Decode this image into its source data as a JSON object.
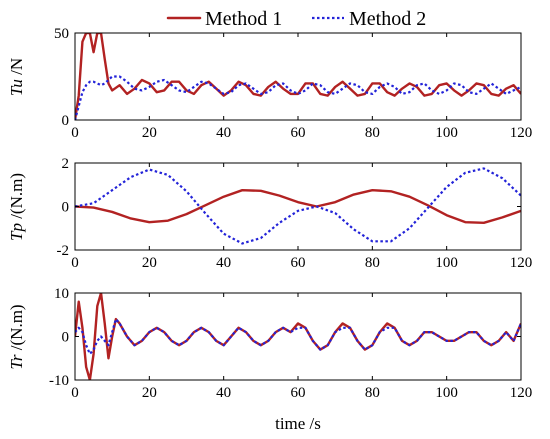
{
  "legend": {
    "items": [
      {
        "label": "Method 1",
        "color": "#b22222",
        "dash": "solid"
      },
      {
        "label": "Method 2",
        "color": "#2323d8",
        "dash": "dotted"
      }
    ]
  },
  "chart_data": [
    {
      "type": "line",
      "ylabel_parts": [
        "Tu",
        " /N"
      ],
      "xlim": [
        0,
        120
      ],
      "ylim": [
        0,
        50
      ],
      "xticks": [
        0,
        20,
        40,
        60,
        80,
        100,
        120
      ],
      "yticks": [
        0,
        50
      ],
      "series": [
        {
          "name": "Method 1",
          "color": "#b22222",
          "dash": "solid",
          "x": [
            0,
            1,
            2,
            3,
            4,
            5,
            6,
            7,
            8,
            9,
            10,
            12,
            14,
            16,
            18,
            20,
            22,
            24,
            26,
            28,
            30,
            32,
            34,
            36,
            38,
            40,
            42,
            44,
            46,
            48,
            50,
            52,
            54,
            56,
            58,
            60,
            62,
            64,
            66,
            68,
            70,
            72,
            74,
            76,
            78,
            80,
            82,
            84,
            86,
            88,
            90,
            92,
            94,
            96,
            98,
            100,
            102,
            104,
            106,
            108,
            110,
            112,
            114,
            116,
            118,
            120
          ],
          "y": [
            0,
            14,
            45,
            50,
            50,
            39,
            50,
            50,
            35,
            21,
            17,
            20,
            15,
            18,
            23,
            21,
            16,
            17,
            22,
            22,
            17,
            15,
            20,
            22,
            18,
            14,
            17,
            22,
            20,
            15,
            14,
            19,
            22,
            18,
            15,
            15,
            21,
            21,
            15,
            14,
            19,
            22,
            18,
            14,
            15,
            21,
            21,
            16,
            14,
            18,
            21,
            19,
            14,
            15,
            20,
            21,
            17,
            14,
            17,
            21,
            20,
            15,
            14,
            18,
            20,
            15
          ]
        },
        {
          "name": "Method 2",
          "color": "#2323d8",
          "dash": "dotted",
          "x": [
            0,
            1,
            2,
            3,
            4,
            5,
            6,
            7,
            8,
            9,
            10,
            12,
            14,
            16,
            18,
            20,
            22,
            24,
            26,
            28,
            30,
            32,
            34,
            36,
            38,
            40,
            42,
            44,
            46,
            48,
            50,
            52,
            54,
            56,
            58,
            60,
            62,
            64,
            66,
            68,
            70,
            72,
            74,
            76,
            78,
            80,
            82,
            84,
            86,
            88,
            90,
            92,
            94,
            96,
            98,
            100,
            102,
            104,
            106,
            108,
            110,
            112,
            114,
            116,
            118,
            120
          ],
          "y": [
            0,
            8,
            16,
            20,
            22,
            22,
            21,
            20,
            21,
            23,
            25,
            25,
            22,
            18,
            17,
            19,
            22,
            23,
            20,
            17,
            16,
            19,
            22,
            21,
            18,
            15,
            16,
            20,
            21,
            18,
            15,
            16,
            20,
            21,
            17,
            15,
            17,
            21,
            20,
            16,
            15,
            18,
            21,
            20,
            16,
            15,
            19,
            21,
            19,
            15,
            16,
            20,
            21,
            17,
            15,
            17,
            21,
            20,
            16,
            15,
            18,
            21,
            18,
            15,
            17,
            19
          ]
        }
      ]
    },
    {
      "type": "line",
      "ylabel_parts": [
        "Tp",
        " /(N.m)"
      ],
      "xlim": [
        0,
        120
      ],
      "ylim": [
        -2,
        2
      ],
      "xticks": [
        0,
        20,
        40,
        60,
        80,
        100,
        120
      ],
      "yticks": [
        -2,
        0,
        2
      ],
      "series": [
        {
          "name": "Method 1",
          "color": "#b22222",
          "dash": "solid",
          "x": [
            0,
            5,
            10,
            15,
            20,
            25,
            30,
            35,
            40,
            45,
            50,
            55,
            60,
            65,
            70,
            75,
            80,
            85,
            90,
            95,
            100,
            105,
            110,
            115,
            120
          ],
          "y": [
            0,
            -0.05,
            -0.25,
            -0.55,
            -0.72,
            -0.65,
            -0.35,
            0.05,
            0.45,
            0.75,
            0.72,
            0.5,
            0.2,
            0,
            0.2,
            0.55,
            0.75,
            0.7,
            0.45,
            0.05,
            -0.4,
            -0.72,
            -0.75,
            -0.5,
            -0.2
          ]
        },
        {
          "name": "Method 2",
          "color": "#2323d8",
          "dash": "dotted",
          "x": [
            0,
            5,
            10,
            15,
            20,
            25,
            30,
            35,
            40,
            45,
            50,
            55,
            60,
            65,
            70,
            75,
            80,
            85,
            90,
            95,
            100,
            105,
            110,
            115,
            120
          ],
          "y": [
            0,
            0.15,
            0.75,
            1.35,
            1.7,
            1.45,
            0.7,
            -0.3,
            -1.25,
            -1.7,
            -1.45,
            -0.75,
            -0.2,
            0,
            -0.3,
            -1.05,
            -1.6,
            -1.6,
            -1.0,
            -0.05,
            0.9,
            1.55,
            1.75,
            1.3,
            0.5
          ]
        }
      ]
    },
    {
      "type": "line",
      "ylabel_parts": [
        "Tr",
        " /(N.m)"
      ],
      "xlim": [
        0,
        120
      ],
      "ylim": [
        -10,
        10
      ],
      "xticks": [
        0,
        20,
        40,
        60,
        80,
        100,
        120
      ],
      "yticks": [
        -10,
        0,
        10
      ],
      "series": [
        {
          "name": "Method 1",
          "color": "#b22222",
          "dash": "solid",
          "x": [
            0,
            1,
            2,
            3,
            4,
            5,
            6,
            7,
            8,
            9,
            10,
            11,
            12,
            14,
            16,
            18,
            20,
            22,
            24,
            26,
            28,
            30,
            32,
            34,
            36,
            38,
            40,
            42,
            44,
            46,
            48,
            50,
            52,
            54,
            56,
            58,
            60,
            62,
            64,
            66,
            68,
            70,
            72,
            74,
            76,
            78,
            80,
            82,
            84,
            86,
            88,
            90,
            92,
            94,
            96,
            98,
            100,
            102,
            104,
            106,
            108,
            110,
            112,
            114,
            116,
            118,
            120
          ],
          "y": [
            0,
            8,
            2,
            -7,
            -10,
            -4,
            7,
            10,
            3,
            -5,
            0,
            4,
            3,
            0,
            -2,
            -1,
            1,
            2,
            1,
            -1,
            -2,
            -1,
            1,
            2,
            1,
            -1,
            -2,
            0,
            2,
            1,
            -1,
            -2,
            -1,
            1,
            2,
            1,
            3,
            2,
            -1,
            -3,
            -2,
            1,
            3,
            2,
            -1,
            -3,
            -2,
            1,
            3,
            2,
            -1,
            -2,
            -1,
            1,
            1,
            0,
            -1,
            -1,
            0,
            1,
            1,
            -1,
            -2,
            -1,
            1,
            -1,
            3
          ]
        },
        {
          "name": "Method 2",
          "color": "#2323d8",
          "dash": "dotted",
          "x": [
            0,
            1,
            2,
            3,
            4,
            5,
            6,
            7,
            8,
            9,
            10,
            11,
            12,
            14,
            16,
            18,
            20,
            22,
            24,
            26,
            28,
            30,
            32,
            34,
            36,
            38,
            40,
            42,
            44,
            46,
            48,
            50,
            52,
            54,
            56,
            58,
            60,
            62,
            64,
            66,
            68,
            70,
            72,
            74,
            76,
            78,
            80,
            82,
            84,
            86,
            88,
            90,
            92,
            94,
            96,
            98,
            100,
            102,
            104,
            106,
            108,
            110,
            112,
            114,
            116,
            118,
            120
          ],
          "y": [
            1,
            2,
            1,
            -2,
            -4,
            -3,
            -1,
            0,
            -1,
            -2,
            1,
            4,
            3,
            0,
            -2,
            -1,
            1,
            2,
            1,
            -1,
            -2,
            -1,
            1,
            2,
            1,
            -1,
            -2,
            0,
            2,
            1,
            -1,
            -2,
            -1,
            1,
            2,
            1,
            2,
            2,
            -1,
            -3,
            -2,
            1,
            2,
            2,
            -1,
            -3,
            -2,
            1,
            2,
            2,
            -1,
            -2,
            -1,
            1,
            1,
            0,
            -1,
            -1,
            0,
            1,
            1,
            -1,
            -2,
            -1,
            1,
            -1,
            3
          ]
        }
      ],
      "xlabel": "time /s"
    }
  ]
}
